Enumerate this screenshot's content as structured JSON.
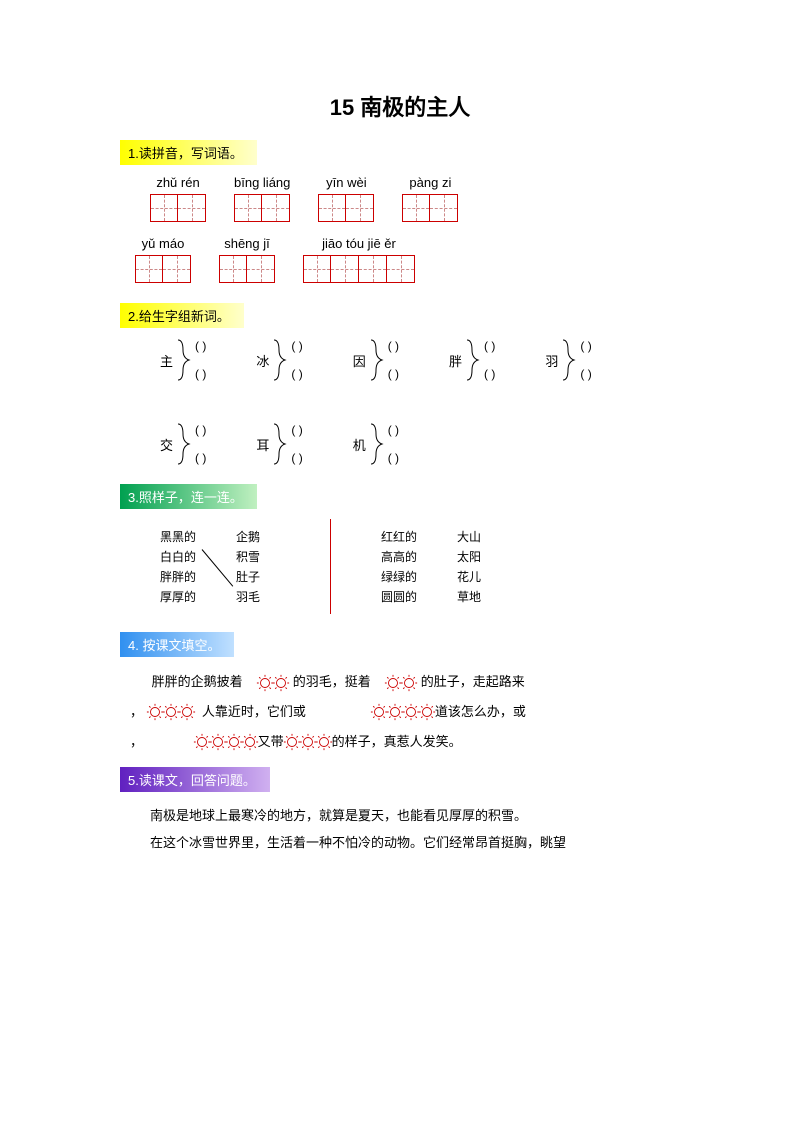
{
  "title": "15 南极的主人",
  "sections": {
    "s1": {
      "heading": "1.读拼音，写词语。"
    },
    "s2": {
      "heading": "2.给生字组新词。"
    },
    "s3": {
      "heading": "3.照样子，连一连。"
    },
    "s4": {
      "heading": "4. 按课文填空。"
    },
    "s5": {
      "heading": "5.读课文，回答问题。"
    }
  },
  "pinyin1": [
    {
      "py": "zhǔ rén",
      "boxes": 2
    },
    {
      "py": "bīng liáng",
      "boxes": 2
    },
    {
      "py": "yīn wèi",
      "boxes": 2
    },
    {
      "py": "pàng zi",
      "boxes": 2
    }
  ],
  "pinyin2": [
    {
      "py": "yǔ máo",
      "boxes": 2
    },
    {
      "py": "shēng jī",
      "boxes": 2
    },
    {
      "py": "jiāo tóu jiē  ěr",
      "boxes": 4
    }
  ],
  "compose_chars": [
    "主",
    "冰",
    "因",
    "胖",
    "羽",
    "交",
    "耳",
    "机"
  ],
  "compose_answer": "(        )",
  "match_left": {
    "adj": [
      "黑黑的",
      "白白的",
      "胖胖的",
      "厚厚的"
    ],
    "noun": [
      "企鹅",
      "积雪",
      "肚子",
      "羽毛"
    ]
  },
  "match_right": {
    "adj": [
      "红红的",
      "高高的",
      "绿绿的",
      "圆圆的"
    ],
    "noun": [
      "大山",
      "太阳",
      "花儿",
      "草地"
    ]
  },
  "fill": {
    "t1": "胖胖的企鹅披着",
    "t2": "的羽毛，挺着",
    "t3": "的肚子，走起路来",
    "t4": "，",
    "t5": "人靠近时，它们或",
    "t6": "道该怎么办，或",
    "t7": "，",
    "t8": "又带",
    "t9": "的样子，真惹人发笑。"
  },
  "reading": {
    "p1": "南极是地球上最寒冷的地方，就算是夏天，也能看见厚厚的积雪。",
    "p2": "在这个冰雪世界里，生活着一种不怕冷的动物。它们经常昂首挺胸，眺望"
  },
  "colors": {
    "sun_color": "#cc0000",
    "brace_color": "#000000"
  }
}
